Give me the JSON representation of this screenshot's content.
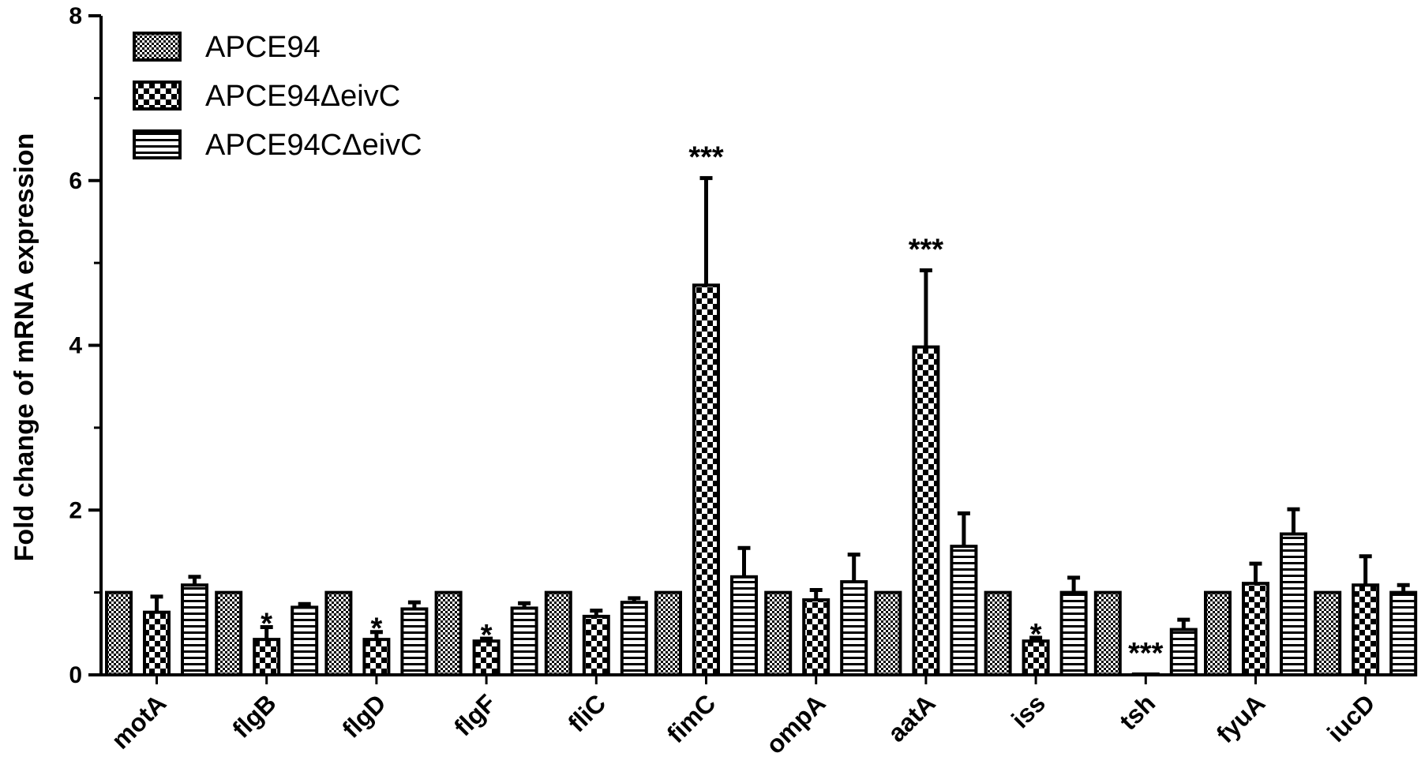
{
  "chart_data": {
    "type": "bar",
    "xlabel": "",
    "ylabel": "Fold change of mRNA expression",
    "ylim": [
      0,
      8
    ],
    "yticks": [
      "0",
      "2",
      "4",
      "6",
      "8"
    ],
    "grid": false,
    "legend_position": "top-left",
    "categories": [
      "motA",
      "flgB",
      "flgD",
      "flgF",
      "fliC",
      "fimC",
      "ompA",
      "aatA",
      "iss",
      "tsh",
      "fyuA",
      "iucD"
    ],
    "series": [
      {
        "name": "APCE94",
        "pattern": "fine-checker",
        "values": [
          1.0,
          1.0,
          1.0,
          1.0,
          1.0,
          1.0,
          1.0,
          1.0,
          1.0,
          1.0,
          1.0,
          1.0
        ],
        "errors": [
          0,
          0,
          0,
          0,
          0,
          0,
          0,
          0,
          0,
          0,
          0,
          0
        ]
      },
      {
        "name": "APCE94ΔeivC",
        "pattern": "coarse-checker",
        "values": [
          0.76,
          0.43,
          0.43,
          0.41,
          0.71,
          4.73,
          0.91,
          3.98,
          0.41,
          0.01,
          1.11,
          1.09
        ],
        "errors": [
          0.19,
          0.15,
          0.09,
          0.03,
          0.07,
          1.3,
          0.12,
          0.93,
          0.04,
          0,
          0.24,
          0.35
        ]
      },
      {
        "name": "APCE94CΔeivC",
        "pattern": "horizontal-stripes",
        "values": [
          1.09,
          0.82,
          0.8,
          0.81,
          0.88,
          1.19,
          1.13,
          1.56,
          1.0,
          0.55,
          1.71,
          1.0
        ],
        "errors": [
          0.1,
          0.04,
          0.08,
          0.06,
          0.05,
          0.35,
          0.33,
          0.4,
          0.18,
          0.12,
          0.3,
          0.09
        ]
      }
    ],
    "annotations": [
      {
        "category": "flgB",
        "text": "*"
      },
      {
        "category": "flgD",
        "text": "*"
      },
      {
        "category": "flgF",
        "text": "*"
      },
      {
        "category": "fimC",
        "text": "***"
      },
      {
        "category": "aatA",
        "text": "***"
      },
      {
        "category": "iss",
        "text": "*"
      },
      {
        "category": "tsh",
        "text": "***"
      }
    ]
  }
}
